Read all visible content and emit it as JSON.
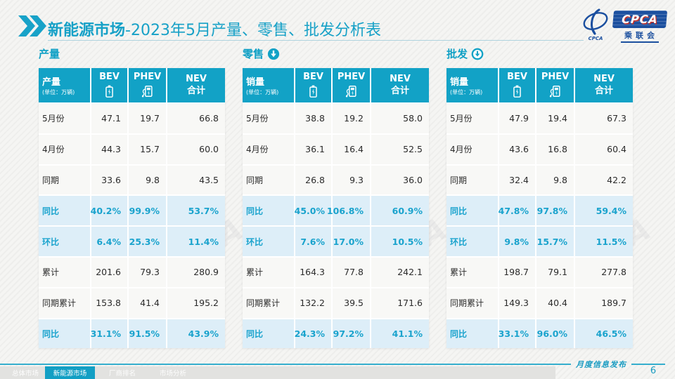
{
  "title": {
    "highlight": "新能源市场",
    "rest": "-2023年5月产量、零售、批发分析表"
  },
  "logo": {
    "acronym": "CPCA",
    "subtext": "乘联会",
    "swirl_label": "CPCA"
  },
  "watermark": "CPCA",
  "colors": {
    "accent": "#12a2c6",
    "header_bg": "#12a2c6",
    "highlight_text": "#1aa3cd",
    "highlight_row_bg": "#ddeef8",
    "footer_line": "#35aecd",
    "logo_blue": "#1c509f",
    "logo_red": "#c43027"
  },
  "sections": [
    {
      "heading": "产量",
      "header": {
        "label": "产量",
        "unit": "(单位：万辆)",
        "col_bev": "BEV",
        "col_phev": "PHEV",
        "col_nev": "NEV",
        "col_nev2": "合计"
      },
      "rows": [
        {
          "label": "5月份",
          "bev": "47.1",
          "phev": "19.7",
          "nev": "66.8",
          "highlight": false
        },
        {
          "label": "4月份",
          "bev": "44.3",
          "phev": "15.7",
          "nev": "60.0",
          "highlight": false
        },
        {
          "label": "同期",
          "bev": "33.6",
          "phev": "9.8",
          "nev": "43.5",
          "highlight": false
        },
        {
          "label": "同比",
          "bev": "40.2%",
          "phev": "99.9%",
          "nev": "53.7%",
          "highlight": true
        },
        {
          "label": "环比",
          "bev": "6.4%",
          "phev": "25.3%",
          "nev": "11.4%",
          "highlight": true
        },
        {
          "label": "累计",
          "bev": "201.6",
          "phev": "79.3",
          "nev": "280.9",
          "highlight": false
        },
        {
          "label": "同期累计",
          "bev": "153.8",
          "phev": "41.4",
          "nev": "195.2",
          "highlight": false
        },
        {
          "label": "同比",
          "bev": "31.1%",
          "phev": "91.5%",
          "nev": "43.9%",
          "highlight": true
        }
      ]
    },
    {
      "heading": "零售",
      "header": {
        "label": "销量",
        "unit": "(单位：万辆)",
        "col_bev": "BEV",
        "col_phev": "PHEV",
        "col_nev": "NEV",
        "col_nev2": "合计"
      },
      "rows": [
        {
          "label": "5月份",
          "bev": "38.8",
          "phev": "19.2",
          "nev": "58.0",
          "highlight": false
        },
        {
          "label": "4月份",
          "bev": "36.1",
          "phev": "16.4",
          "nev": "52.5",
          "highlight": false
        },
        {
          "label": "同期",
          "bev": "26.8",
          "phev": "9.3",
          "nev": "36.0",
          "highlight": false
        },
        {
          "label": "同比",
          "bev": "45.0%",
          "phev": "106.8%",
          "nev": "60.9%",
          "highlight": true
        },
        {
          "label": "环比",
          "bev": "7.6%",
          "phev": "17.0%",
          "nev": "10.5%",
          "highlight": true
        },
        {
          "label": "累计",
          "bev": "164.3",
          "phev": "77.8",
          "nev": "242.1",
          "highlight": false
        },
        {
          "label": "同期累计",
          "bev": "132.2",
          "phev": "39.5",
          "nev": "171.6",
          "highlight": false
        },
        {
          "label": "同比",
          "bev": "24.3%",
          "phev": "97.2%",
          "nev": "41.1%",
          "highlight": true
        }
      ]
    },
    {
      "heading": "批发",
      "header": {
        "label": "销量",
        "unit": "(单位：万辆)",
        "col_bev": "BEV",
        "col_phev": "PHEV",
        "col_nev": "NEV",
        "col_nev2": "合计"
      },
      "rows": [
        {
          "label": "5月份",
          "bev": "47.9",
          "phev": "19.4",
          "nev": "67.3",
          "highlight": false
        },
        {
          "label": "4月份",
          "bev": "43.6",
          "phev": "16.8",
          "nev": "60.4",
          "highlight": false
        },
        {
          "label": "同期",
          "bev": "32.4",
          "phev": "9.8",
          "nev": "42.2",
          "highlight": false
        },
        {
          "label": "同比",
          "bev": "47.8%",
          "phev": "97.8%",
          "nev": "59.4%",
          "highlight": true
        },
        {
          "label": "环比",
          "bev": "9.8%",
          "phev": "15.7%",
          "nev": "11.5%",
          "highlight": true
        },
        {
          "label": "累计",
          "bev": "198.7",
          "phev": "79.1",
          "nev": "277.8",
          "highlight": false
        },
        {
          "label": "同期累计",
          "bev": "149.3",
          "phev": "40.4",
          "nev": "189.7",
          "highlight": false
        },
        {
          "label": "同比",
          "bev": "33.1%",
          "phev": "96.0%",
          "nev": "46.5%",
          "highlight": true
        }
      ]
    }
  ],
  "footer": {
    "tabs": [
      "总体市场",
      "新能源市场",
      "厂商排名",
      "市场分析"
    ],
    "active": 1,
    "caption": "月度信息发布",
    "page": "6"
  }
}
